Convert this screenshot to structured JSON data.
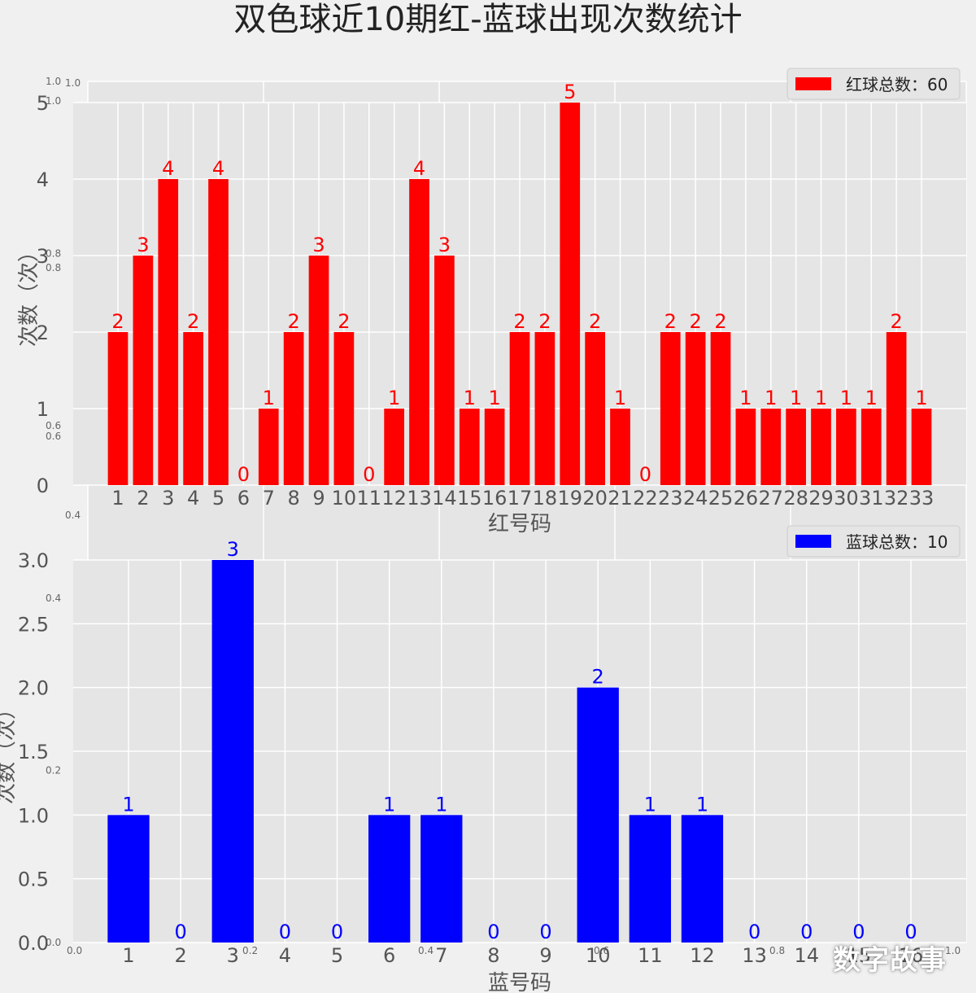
{
  "title": "双色球近10期红-蓝球出现次数统计",
  "watermark": "数字故事",
  "colors": {
    "background": "#f0f0f0",
    "panel": "#e5e5e5",
    "grid": "#ffffff",
    "red": "#ff0000",
    "blue": "#0000ff",
    "text": "#555555"
  },
  "chart_data": [
    {
      "type": "bar",
      "name": "red-balls",
      "categories": [
        "1",
        "2",
        "3",
        "4",
        "5",
        "6",
        "7",
        "8",
        "9",
        "10",
        "11",
        "12",
        "13",
        "14",
        "15",
        "16",
        "17",
        "18",
        "19",
        "20",
        "21",
        "22",
        "23",
        "24",
        "25",
        "26",
        "27",
        "28",
        "29",
        "30",
        "31",
        "32",
        "33"
      ],
      "values": [
        2,
        3,
        4,
        2,
        4,
        0,
        1,
        2,
        3,
        2,
        0,
        1,
        4,
        3,
        1,
        1,
        2,
        2,
        5,
        2,
        1,
        0,
        2,
        2,
        2,
        1,
        1,
        1,
        1,
        1,
        1,
        2,
        1
      ],
      "xlabel": "红号码",
      "ylabel": "次数（次）",
      "ylim": [
        0,
        5
      ],
      "yticks": [
        0,
        1,
        2,
        3,
        4,
        5
      ],
      "legend": "红球总数：60",
      "legend_position": "top-right",
      "color": "#ff0000",
      "grid": true
    },
    {
      "type": "bar",
      "name": "blue-balls",
      "categories": [
        "1",
        "2",
        "3",
        "4",
        "5",
        "6",
        "7",
        "8",
        "9",
        "10",
        "11",
        "12",
        "13",
        "14",
        "15",
        "16"
      ],
      "values": [
        1,
        0,
        3,
        0,
        0,
        1,
        1,
        0,
        0,
        2,
        1,
        1,
        0,
        0,
        0,
        0
      ],
      "xlabel": "蓝号码",
      "ylabel": "次数（次）",
      "ylim": [
        0,
        3
      ],
      "yticks": [
        "0.0",
        "0.5",
        "1.0",
        "1.5",
        "2.0",
        "2.5",
        "3.0"
      ],
      "legend": "蓝球总数：10",
      "legend_position": "top-right",
      "color": "#0000ff",
      "grid": true
    }
  ],
  "background_axes": {
    "xticks": [
      "0.0",
      "0.2",
      "0.4",
      "0.6",
      "0.8",
      "1.0"
    ],
    "yticks": [
      "0.0",
      "0.2",
      "0.4",
      "0.6",
      "0.8",
      "1.0"
    ],
    "upper_yticks": [
      "0.4",
      "0.6",
      "0.8",
      "1.0"
    ],
    "top_ytick": "1.0"
  }
}
